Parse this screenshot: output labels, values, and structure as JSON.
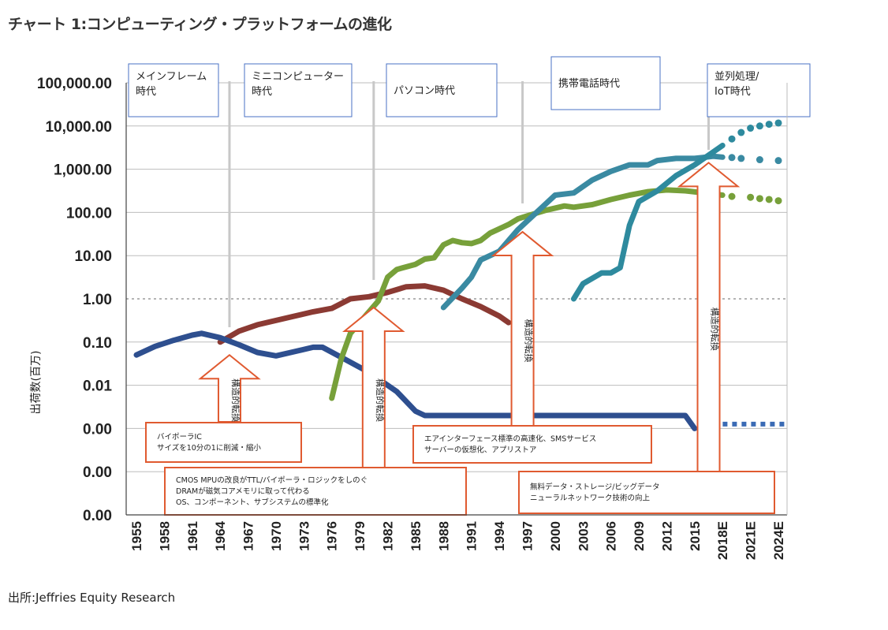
{
  "page": {
    "title": "チャート 1:コンピューティング・プラットフォームの進化",
    "source": "出所:Jeffries Equity Research"
  },
  "chart_data": {
    "type": "line",
    "title": "チャート 1:コンピューティング・プラットフォームの進化",
    "xlabel": "",
    "ylabel": "出荷数(百万)",
    "yscale": "log",
    "ytick_labels": [
      "100,000.00",
      "10,000.00",
      "1,000.00",
      "100.00",
      "10.00",
      "1.00",
      "0.10",
      "0.01",
      "0.00",
      "0.00",
      "0.00"
    ],
    "xtick_labels": [
      "1955",
      "1958",
      "1961",
      "1964",
      "1967",
      "1970",
      "1973",
      "1976",
      "1979",
      "1982",
      "1985",
      "1988",
      "1991",
      "1994",
      "1997",
      "2000",
      "2003",
      "2006",
      "2009",
      "2012",
      "2015",
      "2018E",
      "2021E",
      "2024E"
    ],
    "xlim": [
      1954.5,
      2025.5
    ],
    "ylim_log10": [
      -5,
      5
    ],
    "eras": [
      {
        "label": "メインフレーム\n時代",
        "divider_year": 1965
      },
      {
        "label": "ミニコンピューター\n時代",
        "divider_year": 1980.5
      },
      {
        "label": "パソコン時代",
        "divider_year": 1996.5
      },
      {
        "label": "携帯電話時代",
        "divider_year": 2016.5
      },
      {
        "label": "並列処理/\nIoT時代",
        "divider_year": null
      }
    ],
    "series": [
      {
        "name": "メインフレーム",
        "color": "#2e4f8f",
        "points": [
          [
            1955,
            -1.3
          ],
          [
            1957,
            -1.1
          ],
          [
            1959,
            -0.96
          ],
          [
            1961,
            -0.84
          ],
          [
            1962,
            -0.8
          ],
          [
            1964,
            -0.9
          ],
          [
            1966,
            -1.06
          ],
          [
            1968,
            -1.24
          ],
          [
            1970,
            -1.32
          ],
          [
            1972,
            -1.22
          ],
          [
            1974,
            -1.12
          ],
          [
            1975,
            -1.12
          ],
          [
            1977,
            -1.35
          ],
          [
            1980,
            -1.7
          ],
          [
            1983,
            -2.15
          ],
          [
            1985,
            -2.6
          ],
          [
            1986,
            -2.7
          ],
          [
            1990,
            -2.7
          ],
          [
            2000,
            -2.7
          ],
          [
            2010,
            -2.7
          ],
          [
            2014,
            -2.7
          ],
          [
            2015,
            -3.0
          ]
        ],
        "projection": [
          [
            2017,
            -2.9
          ],
          [
            2025,
            -2.9
          ]
        ],
        "projection_style": "square-dash"
      },
      {
        "name": "ミニコンピューター",
        "color": "#8b3a33",
        "points": [
          [
            1964,
            -1.0
          ],
          [
            1966,
            -0.75
          ],
          [
            1968,
            -0.6
          ],
          [
            1970,
            -0.5
          ],
          [
            1972,
            -0.4
          ],
          [
            1974,
            -0.3
          ],
          [
            1976,
            -0.22
          ],
          [
            1978,
            0.0
          ],
          [
            1980,
            0.05
          ],
          [
            1982,
            0.15
          ],
          [
            1984,
            0.28
          ],
          [
            1986,
            0.3
          ],
          [
            1988,
            0.2
          ],
          [
            1990,
            0.0
          ],
          [
            1992,
            -0.18
          ],
          [
            1994,
            -0.4
          ],
          [
            1995,
            -0.55
          ]
        ]
      },
      {
        "name": "パソコン",
        "color": "#77a03a",
        "points": [
          [
            1976,
            -2.3
          ],
          [
            1977,
            -1.4
          ],
          [
            1978,
            -0.8
          ],
          [
            1980,
            -0.3
          ],
          [
            1981,
            -0.05
          ],
          [
            1982,
            0.5
          ],
          [
            1983,
            0.68
          ],
          [
            1985,
            0.8
          ],
          [
            1986,
            0.92
          ],
          [
            1987,
            0.95
          ],
          [
            1988,
            1.25
          ],
          [
            1989,
            1.35
          ],
          [
            1990,
            1.3
          ],
          [
            1991,
            1.28
          ],
          [
            1992,
            1.35
          ],
          [
            1993,
            1.52
          ],
          [
            1995,
            1.72
          ],
          [
            1996,
            1.85
          ],
          [
            1997,
            1.92
          ],
          [
            1999,
            2.05
          ],
          [
            2001,
            2.15
          ],
          [
            2002,
            2.12
          ],
          [
            2004,
            2.18
          ],
          [
            2006,
            2.3
          ],
          [
            2008,
            2.4
          ],
          [
            2010,
            2.48
          ],
          [
            2012,
            2.52
          ],
          [
            2014,
            2.5
          ],
          [
            2016,
            2.45
          ],
          [
            2018,
            2.4
          ]
        ],
        "projection": [
          [
            2019,
            2.37
          ],
          [
            2021,
            2.35
          ],
          [
            2022,
            2.32
          ],
          [
            2023,
            2.3
          ],
          [
            2024,
            2.27
          ]
        ],
        "projection_style": "dots"
      },
      {
        "name": "携帯電話",
        "color": "#3a8aa2",
        "points": [
          [
            1988,
            -0.2
          ],
          [
            1990,
            0.25
          ],
          [
            1991,
            0.5
          ],
          [
            1992,
            0.9
          ],
          [
            1994,
            1.1
          ],
          [
            1996,
            1.6
          ],
          [
            1998,
            2.0
          ],
          [
            2000,
            2.4
          ],
          [
            2002,
            2.45
          ],
          [
            2004,
            2.75
          ],
          [
            2006,
            2.95
          ],
          [
            2008,
            3.1
          ],
          [
            2010,
            3.1
          ],
          [
            2011,
            3.2
          ],
          [
            2013,
            3.25
          ],
          [
            2015,
            3.25
          ],
          [
            2017,
            3.3
          ],
          [
            2018,
            3.28
          ]
        ],
        "projection": [
          [
            2019,
            3.27
          ],
          [
            2020,
            3.25
          ],
          [
            2022,
            3.22
          ],
          [
            2024,
            3.2
          ]
        ],
        "projection_style": "dots"
      },
      {
        "name": "並列処理/IoT",
        "color": "#2e8a9e",
        "points": [
          [
            2002,
            0.0
          ],
          [
            2003,
            0.35
          ],
          [
            2005,
            0.6
          ],
          [
            2006,
            0.6
          ],
          [
            2007,
            0.72
          ],
          [
            2008,
            1.7
          ],
          [
            2009,
            2.25
          ],
          [
            2011,
            2.5
          ],
          [
            2013,
            2.85
          ],
          [
            2015,
            3.1
          ],
          [
            2017,
            3.4
          ],
          [
            2018,
            3.55
          ]
        ],
        "projection": [
          [
            2019,
            3.7
          ],
          [
            2020,
            3.85
          ],
          [
            2021,
            3.95
          ],
          [
            2022,
            4.0
          ],
          [
            2023,
            4.04
          ],
          [
            2024,
            4.07
          ]
        ],
        "projection_style": "dots"
      }
    ],
    "annotations": [
      {
        "kind": "arrow",
        "label": "構造的転換",
        "year": 1965,
        "top_log": -1.3
      },
      {
        "kind": "arrow",
        "label": "構造的転換",
        "year": 1980.5,
        "top_log": -0.2
      },
      {
        "kind": "arrow",
        "label": "構造的転換",
        "year": 1996.5,
        "top_log": 1.55
      },
      {
        "kind": "arrow",
        "label": "構造的転換",
        "year": 2016.5,
        "top_log": 3.15
      },
      {
        "kind": "note",
        "lines": [
          "バイポーラIC",
          "サイズを10分の1に削減・縮小"
        ]
      },
      {
        "kind": "note",
        "lines": [
          "CMOS MPUの改良がTTL/バイポーラ・ロジックをしのぐ",
          "DRAMが磁気コアメモリに取って代わる",
          "OS、コンポーネント、サブシステムの標準化"
        ]
      },
      {
        "kind": "note",
        "lines": [
          "エアインターフェース標準の高速化、SMSサービス",
          "サーバーの仮想化、アプリストア"
        ]
      },
      {
        "kind": "note",
        "lines": [
          "無料データ・ストレージ/ビッグデータ",
          "ニューラルネットワーク技術の向上"
        ]
      }
    ]
  }
}
